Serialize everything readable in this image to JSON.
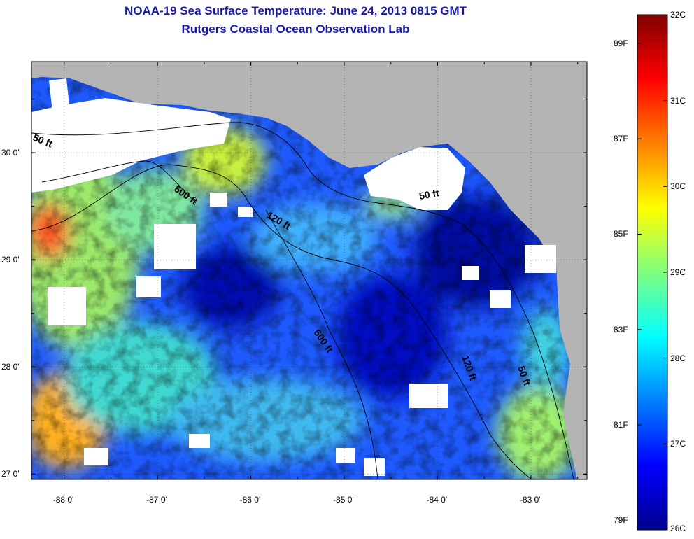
{
  "title": {
    "line1": "NOAA-19 Sea Surface Temperature:  June 24, 2013 0815 GMT",
    "line2": "Rutgers Coastal Ocean Observation Lab"
  },
  "map": {
    "x_ticks": [
      "-88 0'",
      "-87 0'",
      "-86 0'",
      "-85 0'",
      "-84 0'",
      "-83 0'"
    ],
    "y_ticks": [
      "30 0'",
      "29 0'",
      "28 0'",
      "27 0'"
    ],
    "lon_range": [
      -88.35,
      -82.4
    ],
    "lat_range": [
      26.95,
      30.85
    ],
    "contour_labels": [
      "50 ft",
      "600 ft",
      "120 ft",
      "50 ft",
      "600 ft",
      "120 ft",
      "50 ft"
    ],
    "colors": {
      "land": "#b4b4b4",
      "cloud": "#ffffff",
      "contour": "#000000",
      "grid": "#000000"
    }
  },
  "colorbar": {
    "celsius_labels": [
      "32C",
      "31C",
      "30C",
      "29C",
      "28C",
      "27C",
      "26C"
    ],
    "fahrenheit_labels": [
      "89F",
      "87F",
      "85F",
      "83F",
      "81F",
      "79F"
    ],
    "celsius_range": [
      26,
      32
    ],
    "colormap": "jet"
  }
}
